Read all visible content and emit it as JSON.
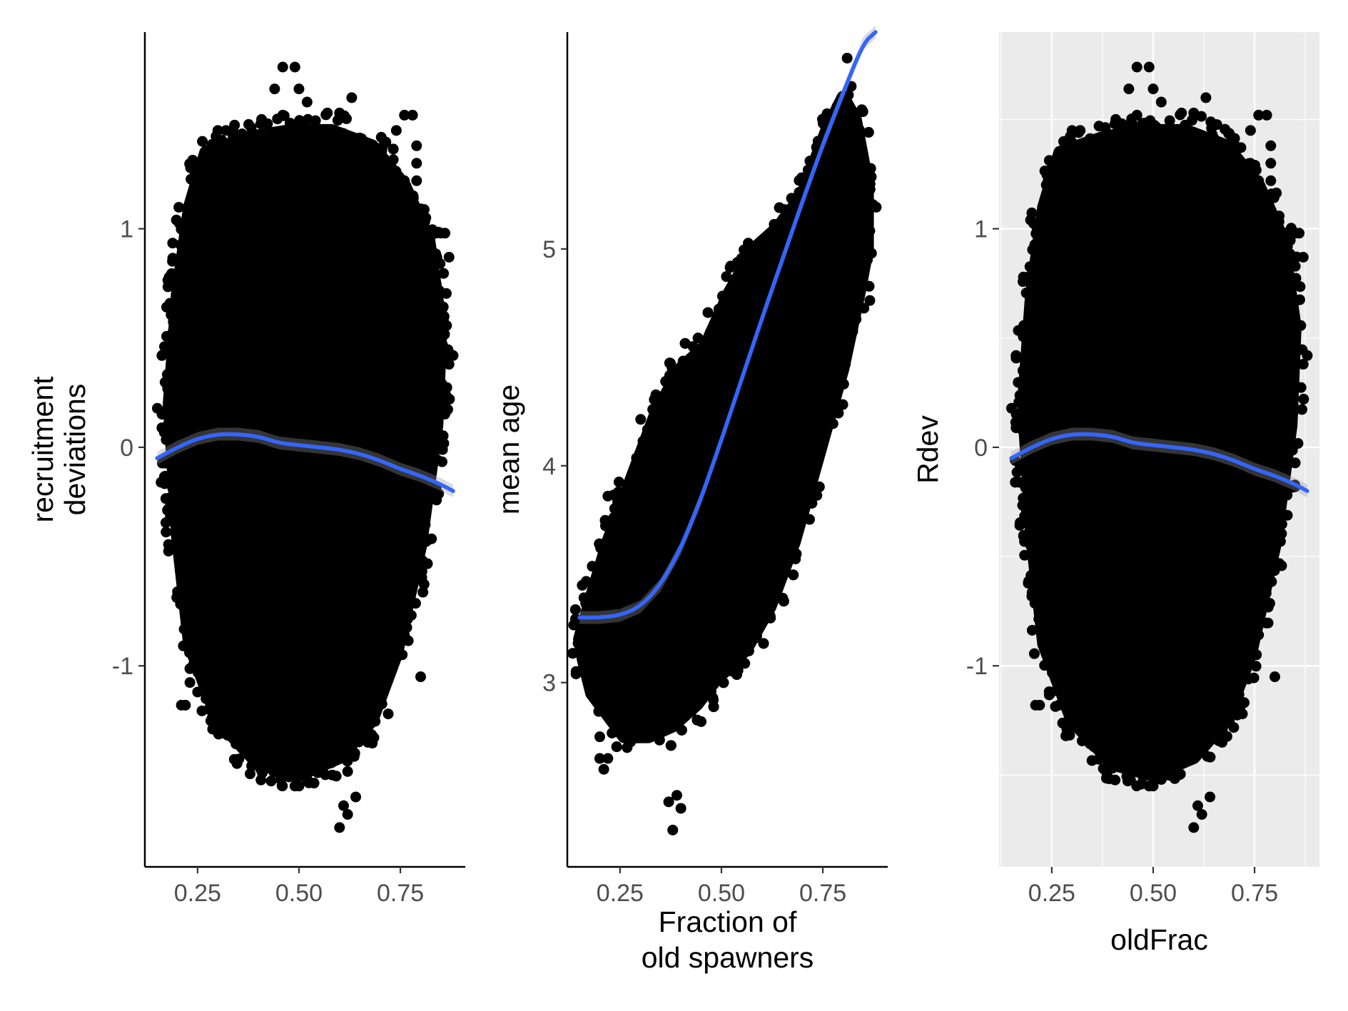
{
  "chart_data": [
    {
      "type": "scatter",
      "panel_style": "classic",
      "title": "",
      "xlabel": "",
      "ylabel": [
        "recruitment",
        "deviations"
      ],
      "xlim": [
        0.12,
        0.91
      ],
      "ylim": [
        -1.92,
        1.9
      ],
      "x_ticks": [
        0.25,
        0.5,
        0.75
      ],
      "x_tick_labels": [
        "0.25",
        "0.50",
        "0.75"
      ],
      "y_ticks": [
        -1,
        0,
        1
      ],
      "y_tick_labels": [
        "-1",
        "0",
        "1"
      ],
      "grid": false,
      "point_cloud": {
        "center_x": 0.5,
        "center_y": 0.0,
        "spread_x": 0.125,
        "spread_y": 0.5,
        "outline_x": [
          0.27,
          0.23,
          0.2,
          0.18,
          0.2,
          0.23,
          0.3,
          0.4,
          0.5,
          0.6,
          0.68,
          0.74,
          0.8,
          0.84,
          0.85,
          0.82,
          0.76,
          0.68,
          0.58,
          0.48,
          0.38
        ],
        "outline_y": [
          1.35,
          1.1,
          0.7,
          0.2,
          -0.4,
          -0.9,
          -1.25,
          -1.45,
          -1.5,
          -1.42,
          -1.25,
          -0.95,
          -0.45,
          0.1,
          0.55,
          0.95,
          1.2,
          1.38,
          1.45,
          1.45,
          1.42
        ]
      },
      "outliers": [
        [
          0.46,
          1.74
        ],
        [
          0.49,
          1.74
        ],
        [
          0.44,
          1.64
        ],
        [
          0.5,
          1.64
        ],
        [
          0.46,
          1.52
        ],
        [
          0.52,
          1.58
        ],
        [
          0.63,
          1.6
        ],
        [
          0.6,
          1.53
        ],
        [
          0.57,
          1.53
        ],
        [
          0.78,
          1.52
        ],
        [
          0.76,
          1.52
        ],
        [
          0.74,
          1.45
        ],
        [
          0.79,
          1.38
        ],
        [
          0.3,
          1.45
        ],
        [
          0.32,
          1.45
        ],
        [
          0.69,
          1.33
        ],
        [
          0.79,
          1.3
        ],
        [
          0.76,
          1.22
        ],
        [
          0.79,
          1.22
        ],
        [
          0.69,
          1.22
        ],
        [
          0.66,
          1.28
        ],
        [
          0.85,
          0.98
        ],
        [
          0.86,
          0.98
        ],
        [
          0.87,
          0.87
        ],
        [
          0.84,
          0.87
        ],
        [
          0.88,
          0.42
        ],
        [
          0.87,
          0.38
        ],
        [
          0.17,
          -0.16
        ],
        [
          0.16,
          -0.16
        ],
        [
          0.22,
          -1.18
        ],
        [
          0.21,
          -1.18
        ],
        [
          0.25,
          -1.12
        ],
        [
          0.3,
          -1.28
        ],
        [
          0.32,
          -1.25
        ],
        [
          0.4,
          -1.42
        ],
        [
          0.42,
          -1.42
        ],
        [
          0.5,
          -1.55
        ],
        [
          0.49,
          -1.55
        ],
        [
          0.52,
          -1.52
        ],
        [
          0.54,
          -1.48
        ],
        [
          0.61,
          -1.64
        ],
        [
          0.62,
          -1.68
        ],
        [
          0.6,
          -1.74
        ],
        [
          0.64,
          -1.6
        ],
        [
          0.67,
          -1.35
        ],
        [
          0.72,
          -1.22
        ],
        [
          0.8,
          -1.05
        ]
      ],
      "smooth_line": {
        "color": "#3366FF",
        "x": [
          0.15,
          0.2,
          0.25,
          0.3,
          0.35,
          0.4,
          0.45,
          0.5,
          0.55,
          0.6,
          0.65,
          0.7,
          0.75,
          0.8,
          0.85,
          0.88
        ],
        "y": [
          -0.05,
          0.0,
          0.04,
          0.06,
          0.06,
          0.05,
          0.02,
          0.01,
          0.0,
          -0.01,
          -0.03,
          -0.06,
          -0.1,
          -0.13,
          -0.17,
          -0.2
        ]
      }
    },
    {
      "type": "scatter",
      "panel_style": "classic",
      "title": "",
      "xlabel": [
        "Fraction of",
        "old spawners"
      ],
      "ylabel": [
        "mean age"
      ],
      "xlim": [
        0.12,
        0.91
      ],
      "ylim": [
        2.15,
        6.0
      ],
      "x_ticks": [
        0.25,
        0.5,
        0.75
      ],
      "x_tick_labels": [
        "0.25",
        "0.50",
        "0.75"
      ],
      "y_ticks": [
        3,
        4,
        5
      ],
      "y_tick_labels": [
        "3",
        "4",
        "5"
      ],
      "grid": false,
      "point_cloud": {
        "outline_x": [
          0.15,
          0.18,
          0.22,
          0.28,
          0.34,
          0.4,
          0.46,
          0.52,
          0.58,
          0.64,
          0.7,
          0.76,
          0.8,
          0.83,
          0.86,
          0.86,
          0.84,
          0.8,
          0.74,
          0.68,
          0.62,
          0.56,
          0.5,
          0.44,
          0.38,
          0.32,
          0.26,
          0.22,
          0.18,
          0.16
        ],
        "outline_y": [
          3.2,
          3.4,
          3.65,
          3.95,
          4.25,
          4.45,
          4.55,
          4.8,
          5.0,
          5.1,
          5.25,
          5.55,
          5.7,
          5.6,
          5.3,
          5.0,
          4.8,
          4.45,
          4.05,
          3.65,
          3.35,
          3.15,
          3.05,
          2.9,
          2.8,
          2.75,
          2.75,
          2.85,
          2.95,
          3.1
        ]
      },
      "outliers": [
        [
          0.81,
          5.88
        ],
        [
          0.82,
          5.75
        ],
        [
          0.79,
          5.65
        ],
        [
          0.84,
          5.55
        ],
        [
          0.75,
          5.45
        ],
        [
          0.74,
          5.25
        ],
        [
          0.86,
          4.95
        ],
        [
          0.87,
          4.98
        ],
        [
          0.43,
          4.55
        ],
        [
          0.19,
          3.35
        ],
        [
          0.16,
          3.22
        ],
        [
          0.18,
          3.1
        ],
        [
          0.22,
          3.86
        ],
        [
          0.2,
          2.75
        ],
        [
          0.2,
          2.65
        ],
        [
          0.22,
          2.65
        ],
        [
          0.21,
          2.6
        ],
        [
          0.37,
          2.45
        ],
        [
          0.39,
          2.48
        ],
        [
          0.38,
          2.32
        ],
        [
          0.4,
          2.42
        ],
        [
          0.45,
          2.82
        ],
        [
          0.48,
          2.92
        ],
        [
          0.52,
          3.1
        ],
        [
          0.56,
          3.2
        ],
        [
          0.62,
          3.45
        ]
      ],
      "smooth_line": {
        "color": "#3366FF",
        "x": [
          0.15,
          0.2,
          0.25,
          0.3,
          0.35,
          0.4,
          0.45,
          0.5,
          0.55,
          0.6,
          0.65,
          0.7,
          0.75,
          0.8,
          0.85,
          0.88
        ],
        "y": [
          3.3,
          3.3,
          3.31,
          3.35,
          3.45,
          3.62,
          3.85,
          4.12,
          4.4,
          4.68,
          4.95,
          5.22,
          5.48,
          5.72,
          5.95,
          6.05
        ]
      }
    },
    {
      "type": "scatter",
      "panel_style": "grey-grid",
      "title": "",
      "xlabel": [
        "oldFrac"
      ],
      "ylabel": [
        "Rdev"
      ],
      "xlim": [
        0.12,
        0.91
      ],
      "ylim": [
        -1.92,
        1.9
      ],
      "x_ticks": [
        0.25,
        0.5,
        0.75
      ],
      "x_tick_labels": [
        "0.25",
        "0.50",
        "0.75"
      ],
      "y_ticks": [
        -1,
        0,
        1
      ],
      "y_tick_labels": [
        "-1",
        "0",
        "1"
      ],
      "grid": true,
      "point_cloud": {
        "outline_x": [
          0.27,
          0.23,
          0.2,
          0.18,
          0.2,
          0.23,
          0.3,
          0.4,
          0.5,
          0.6,
          0.68,
          0.74,
          0.8,
          0.84,
          0.85,
          0.82,
          0.76,
          0.68,
          0.58,
          0.48,
          0.38
        ],
        "outline_y": [
          1.35,
          1.1,
          0.7,
          0.2,
          -0.4,
          -0.9,
          -1.25,
          -1.45,
          -1.5,
          -1.42,
          -1.25,
          -0.95,
          -0.45,
          0.1,
          0.55,
          0.95,
          1.2,
          1.38,
          1.45,
          1.45,
          1.42
        ]
      },
      "outliers": [
        [
          0.46,
          1.74
        ],
        [
          0.49,
          1.74
        ],
        [
          0.44,
          1.64
        ],
        [
          0.5,
          1.64
        ],
        [
          0.46,
          1.52
        ],
        [
          0.52,
          1.58
        ],
        [
          0.63,
          1.6
        ],
        [
          0.6,
          1.53
        ],
        [
          0.57,
          1.53
        ],
        [
          0.78,
          1.52
        ],
        [
          0.76,
          1.52
        ],
        [
          0.74,
          1.45
        ],
        [
          0.79,
          1.38
        ],
        [
          0.3,
          1.45
        ],
        [
          0.32,
          1.45
        ],
        [
          0.69,
          1.33
        ],
        [
          0.79,
          1.3
        ],
        [
          0.76,
          1.22
        ],
        [
          0.79,
          1.22
        ],
        [
          0.69,
          1.22
        ],
        [
          0.66,
          1.28
        ],
        [
          0.85,
          0.98
        ],
        [
          0.86,
          0.98
        ],
        [
          0.87,
          0.87
        ],
        [
          0.84,
          0.87
        ],
        [
          0.88,
          0.42
        ],
        [
          0.87,
          0.38
        ],
        [
          0.17,
          -0.16
        ],
        [
          0.16,
          -0.16
        ],
        [
          0.22,
          -1.18
        ],
        [
          0.21,
          -1.18
        ],
        [
          0.25,
          -1.12
        ],
        [
          0.3,
          -1.28
        ],
        [
          0.32,
          -1.25
        ],
        [
          0.4,
          -1.42
        ],
        [
          0.42,
          -1.42
        ],
        [
          0.5,
          -1.55
        ],
        [
          0.49,
          -1.55
        ],
        [
          0.52,
          -1.52
        ],
        [
          0.54,
          -1.48
        ],
        [
          0.61,
          -1.64
        ],
        [
          0.62,
          -1.68
        ],
        [
          0.6,
          -1.74
        ],
        [
          0.64,
          -1.6
        ],
        [
          0.67,
          -1.35
        ],
        [
          0.72,
          -1.22
        ],
        [
          0.8,
          -1.05
        ]
      ],
      "smooth_line": {
        "color": "#3366FF",
        "x": [
          0.15,
          0.2,
          0.25,
          0.3,
          0.35,
          0.4,
          0.45,
          0.5,
          0.55,
          0.6,
          0.65,
          0.7,
          0.75,
          0.8,
          0.85,
          0.88
        ],
        "y": [
          -0.05,
          0.0,
          0.04,
          0.06,
          0.06,
          0.05,
          0.02,
          0.01,
          0.0,
          -0.01,
          -0.03,
          -0.06,
          -0.1,
          -0.13,
          -0.17,
          -0.2
        ]
      }
    }
  ],
  "colors": {
    "points": "#000000",
    "smooth": "#3366FF",
    "ribbon": "#999999",
    "panel_grey": "#EBEBEB",
    "grid": "#FFFFFF",
    "tick_text": "#4D4D4D"
  }
}
